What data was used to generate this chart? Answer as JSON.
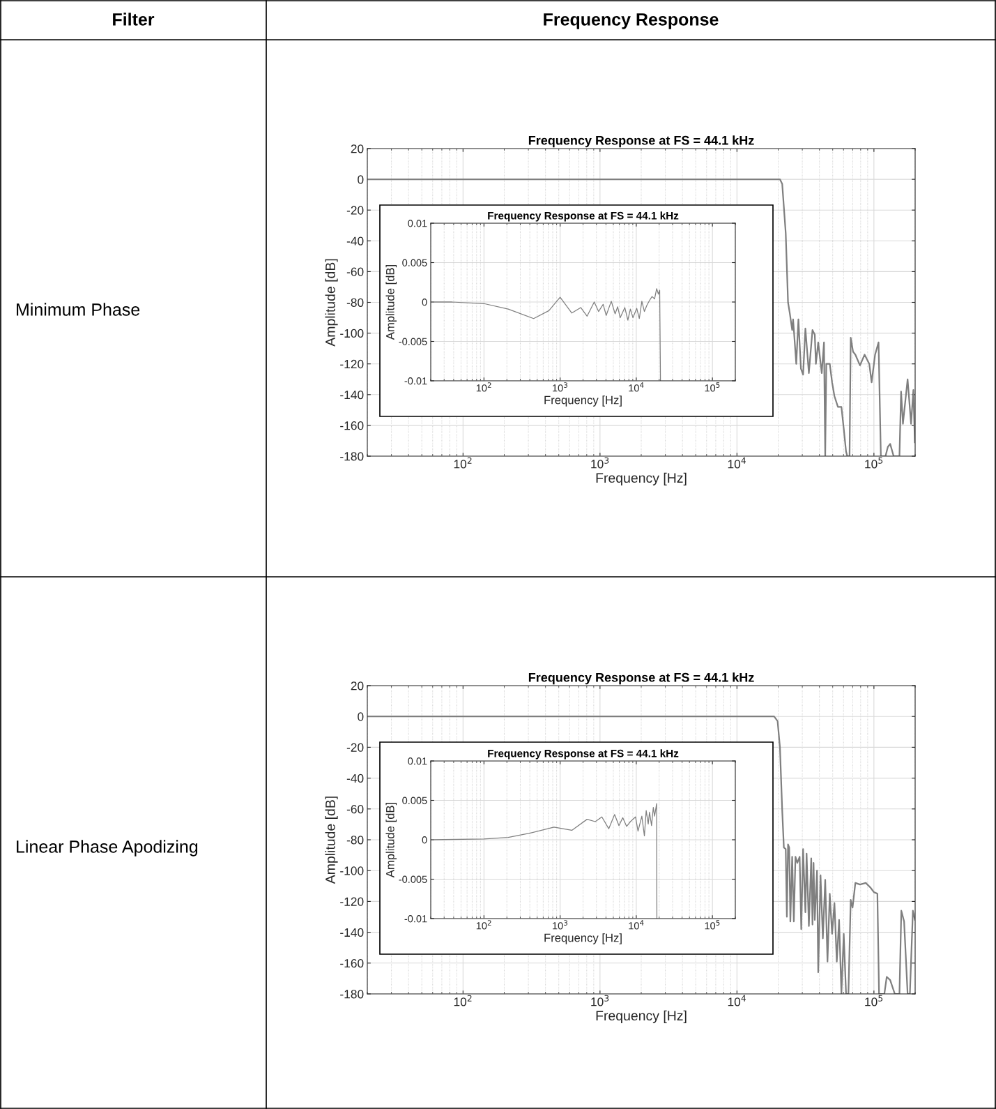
{
  "chart_data": [
    {
      "type": "other",
      "annotations": [
        "Filter",
        "Frequency Response",
        "Minimum Phase",
        "Linear Phase Apodizing"
      ]
    },
    {
      "type": "line",
      "title": "Frequency Response at FS = 44.1 kHz",
      "xlabel": "Frequency [Hz]",
      "ylabel": "Amplitude [dB]",
      "log": "x",
      "grid": true,
      "xlim": [
        20,
        200000
      ],
      "ylim": [
        -180,
        20
      ],
      "xticks": [
        {
          "value": 100,
          "label": "10$^{2}$"
        },
        {
          "value": 1000,
          "label": "10$^{3}$"
        },
        {
          "value": 10000,
          "label": "10$^{4}$"
        },
        {
          "value": 100000,
          "label": "10$^{5}$"
        }
      ],
      "yticks": [
        -180,
        -160,
        -140,
        -120,
        -100,
        -80,
        -60,
        -40,
        -20,
        0,
        20
      ],
      "series": [
        {
          "color": "#7f7f7f",
          "x": [
            20,
            20600,
            21400,
            22700,
            23600,
            24300,
            25300,
            25700,
            27100,
            28100,
            29300,
            30400,
            31600,
            33500,
            35600,
            37000,
            37700,
            39200,
            41600,
            43200,
            44100,
            44900,
            47600,
            49500,
            51500,
            54600,
            57900,
            60200,
            62600,
            63900,
            66400,
            67700,
            70400,
            73200,
            79100,
            85500,
            92500,
            96200,
            102000,
            108100,
            112400,
            121500,
            126400,
            131400,
            139300,
            153600,
            157900,
            162900,
            176200,
            186700,
            194100,
            199000
          ],
          "values": [
            0,
            0,
            -3,
            -35,
            -80,
            -87,
            -98,
            -91,
            -120,
            -91,
            -123,
            -127,
            -97,
            -126,
            -98,
            -101,
            -120,
            -106,
            -126,
            -106,
            -180,
            -120,
            -120,
            -132,
            -141,
            -148,
            -148,
            -162,
            -177,
            -180,
            -180,
            -103,
            -112,
            -114,
            -121,
            -114,
            -120,
            -132,
            -114,
            -106,
            -180,
            -180,
            -174,
            -172,
            -180,
            -180,
            -138,
            -159,
            -130,
            -159,
            -137,
            -171
          ]
        }
      ]
    },
    {
      "type": "line",
      "title": "Frequency Response at FS = 44.1 kHz",
      "xlabel": "Frequency [Hz]",
      "ylabel": "Amplitude [dB]",
      "log": "x",
      "grid": true,
      "xlim": [
        20,
        200000
      ],
      "ylim": [
        -0.01,
        0.01
      ],
      "xticks": [
        {
          "value": 100,
          "label": "10$^{2}$"
        },
        {
          "value": 1000,
          "label": "10$^{3}$"
        },
        {
          "value": 10000,
          "label": "10$^{4}$"
        },
        {
          "value": 100000,
          "label": "10$^{5}$"
        }
      ],
      "yticks": [
        -0.01,
        -0.005,
        0,
        0.005,
        0.01
      ],
      "series": [
        {
          "color": "#7f7f7f",
          "x": [
            20,
            38,
            100,
            208,
            449,
            713,
            1000,
            1425,
            1866,
            2262,
            2807,
            3199,
            3675,
            4031,
            4700,
            5278,
            5700,
            6155,
            7072,
            7755,
            8380,
            9050,
            10150,
            10970,
            11840,
            12790,
            13820,
            14930,
            16130,
            17410,
            18520,
            19540,
            20310,
            20790
          ],
          "values": [
            0,
            0,
            -0.0002,
            -0.0009,
            -0.0021,
            -0.0011,
            0.0006,
            -0.0014,
            -0.0007,
            -0.0018,
            0,
            -0.0012,
            -0.0003,
            -0.0017,
            0.0001,
            -0.0015,
            -0.0006,
            -0.002,
            -0.0007,
            -0.0023,
            -0.0009,
            -0.002,
            -0.0008,
            -0.0021,
            0.0001,
            -0.0012,
            -0.0004,
            0.0002,
            0.0007,
            0.0004,
            0.0017,
            0.001,
            0.0015,
            -0.01
          ]
        }
      ]
    },
    {
      "type": "line",
      "title": "Frequency Response at FS = 44.1 kHz",
      "xlabel": "Frequency [Hz]",
      "ylabel": "Amplitude [dB]",
      "log": "x",
      "grid": true,
      "xlim": [
        20,
        200000
      ],
      "ylim": [
        -180,
        20
      ],
      "xticks": [
        {
          "value": 100,
          "label": "10$^{2}$"
        },
        {
          "value": 1000,
          "label": "10$^{3}$"
        },
        {
          "value": 10000,
          "label": "10$^{4}$"
        },
        {
          "value": 100000,
          "label": "10$^{5}$"
        }
      ],
      "yticks": [
        -180,
        -160,
        -140,
        -120,
        -100,
        -80,
        -60,
        -40,
        -20,
        0,
        20
      ],
      "series": [
        {
          "color": "#7f7f7f",
          "x": [
            20,
            18670,
            19800,
            20600,
            21400,
            22000,
            22700,
            23140,
            23600,
            24070,
            24540,
            25300,
            26020,
            26740,
            27590,
            28690,
            29480,
            30400,
            31600,
            32250,
            33500,
            34860,
            35600,
            36250,
            37000,
            38420,
            39200,
            40760,
            42370,
            44100,
            45810,
            47600,
            49500,
            51500,
            53560,
            55690,
            57900,
            60200,
            62600,
            65130,
            67700,
            69850,
            73200,
            79100,
            87240,
            94310,
            100000,
            106000,
            109000,
            119200,
            124000,
            131400,
            142100,
            153600,
            158500,
            166100,
            176200,
            183100,
            192600,
            199500
          ],
          "values": [
            0,
            0,
            -3,
            -20,
            -61,
            -85,
            -86,
            -130,
            -83,
            -85,
            -133,
            -91,
            -133,
            -91,
            -95,
            -91,
            -138,
            -86,
            -127,
            -89,
            -136,
            -92,
            -135,
            -95,
            -132,
            -100,
            -166,
            -103,
            -144,
            -106,
            -159,
            -115,
            -141,
            -121,
            -159,
            -132,
            -180,
            -141,
            -180,
            -180,
            -119,
            -124,
            -108,
            -109,
            -108,
            -111,
            -114,
            -115,
            -180,
            -180,
            -169,
            -171,
            -180,
            -180,
            -126,
            -133,
            -180,
            -180,
            -126,
            -132
          ]
        }
      ]
    },
    {
      "type": "line",
      "title": "Frequency Response at FS = 44.1 kHz",
      "xlabel": "Frequency [Hz]",
      "ylabel": "Amplitude [dB]",
      "log": "x",
      "grid": true,
      "xlim": [
        20,
        200000
      ],
      "ylim": [
        -0.01,
        0.01
      ],
      "xticks": [
        {
          "value": 100,
          "label": "10$^{2}$"
        },
        {
          "value": 1000,
          "label": "10$^{3}$"
        },
        {
          "value": 10000,
          "label": "10$^{4}$"
        },
        {
          "value": 100000,
          "label": "10$^{5}$"
        }
      ],
      "yticks": [
        -0.01,
        -0.005,
        0,
        0.005,
        0.01
      ],
      "series": [
        {
          "color": "#7f7f7f",
          "x": [
            20,
            100,
            208,
            385,
            831,
            1425,
            2262,
            2894,
            3536,
            4353,
            5195,
            5924,
            6648,
            7463,
            8380,
            9772,
            10550,
            11840,
            12790,
            13500,
            14360,
            14930,
            15880,
            16750,
            17410,
            18520,
            18660
          ],
          "values": [
            0,
            0.0001,
            0.0003,
            0.0008,
            0.0016,
            0.0012,
            0.0026,
            0.0023,
            0.0029,
            0.0014,
            0.0032,
            0.0018,
            0.0028,
            0.0017,
            0.0023,
            0.0029,
            0.0011,
            0.003,
            0.0005,
            0.0037,
            0.002,
            0.0035,
            0.0018,
            0.0041,
            0.003,
            0.0046,
            -0.01
          ]
        }
      ]
    }
  ]
}
